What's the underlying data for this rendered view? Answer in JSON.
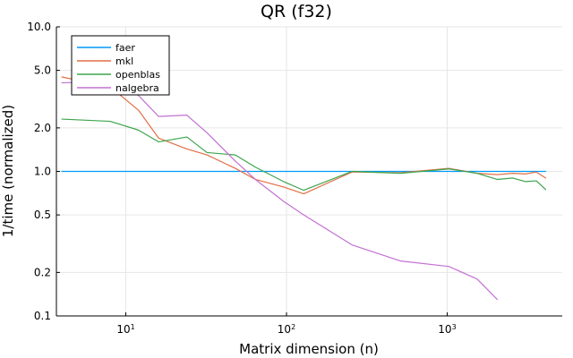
{
  "chart_data": {
    "type": "line",
    "title": "QR (f32)",
    "xlabel": "Matrix dimension (n)",
    "ylabel": "1/time (normalized)",
    "xscale": "log",
    "yscale": "log",
    "xlim": [
      3.7,
      5200
    ],
    "ylim": [
      0.1,
      10.0
    ],
    "grid": true,
    "legend_position": "top-left",
    "x_ticks": [
      {
        "value": 10,
        "label_base": "10",
        "label_exp": "1"
      },
      {
        "value": 100,
        "label_base": "10",
        "label_exp": "2"
      },
      {
        "value": 1000,
        "label_base": "10",
        "label_exp": "3"
      }
    ],
    "y_ticks": [
      {
        "value": 0.1,
        "label": "0.1"
      },
      {
        "value": 0.2,
        "label": "0.2"
      },
      {
        "value": 0.5,
        "label": "0.5"
      },
      {
        "value": 1.0,
        "label": "1.0"
      },
      {
        "value": 2.0,
        "label": "2.0"
      },
      {
        "value": 5.0,
        "label": "5.0"
      },
      {
        "value": 10.0,
        "label": "10.0"
      }
    ],
    "series": [
      {
        "name": "faer",
        "color": "#009af9",
        "points": [
          [
            4,
            1.0
          ],
          [
            8,
            1.0
          ],
          [
            12,
            1.0
          ],
          [
            16,
            1.0
          ],
          [
            24,
            1.0
          ],
          [
            32,
            1.0
          ],
          [
            48,
            1.0
          ],
          [
            64,
            1.0
          ],
          [
            96,
            1.0
          ],
          [
            128,
            1.0
          ],
          [
            256,
            1.0
          ],
          [
            512,
            1.0
          ],
          [
            1024,
            1.0
          ],
          [
            1536,
            1.0
          ],
          [
            2048,
            1.0
          ],
          [
            2560,
            1.0
          ],
          [
            3072,
            1.0
          ],
          [
            3584,
            1.0
          ],
          [
            4096,
            1.0
          ]
        ]
      },
      {
        "name": "mkl",
        "color": "#e26f46",
        "points": [
          [
            4,
            4.5
          ],
          [
            8,
            3.85
          ],
          [
            12,
            2.65
          ],
          [
            16,
            1.7
          ],
          [
            24,
            1.43
          ],
          [
            32,
            1.3
          ],
          [
            48,
            1.05
          ],
          [
            64,
            0.88
          ],
          [
            96,
            0.78
          ],
          [
            128,
            0.7
          ],
          [
            256,
            0.99
          ],
          [
            512,
            0.98
          ],
          [
            1024,
            1.05
          ],
          [
            1536,
            0.97
          ],
          [
            2048,
            0.95
          ],
          [
            2560,
            0.97
          ],
          [
            3072,
            0.96
          ],
          [
            3584,
            0.99
          ],
          [
            4096,
            0.9
          ]
        ]
      },
      {
        "name": "openblas",
        "color": "#3da44d",
        "points": [
          [
            4,
            2.3
          ],
          [
            8,
            2.22
          ],
          [
            12,
            1.93
          ],
          [
            16,
            1.6
          ],
          [
            24,
            1.73
          ],
          [
            32,
            1.35
          ],
          [
            48,
            1.3
          ],
          [
            64,
            1.07
          ],
          [
            96,
            0.85
          ],
          [
            128,
            0.74
          ],
          [
            256,
            1.0
          ],
          [
            512,
            0.97
          ],
          [
            1024,
            1.04
          ],
          [
            1536,
            0.97
          ],
          [
            2048,
            0.88
          ],
          [
            2560,
            0.9
          ],
          [
            3072,
            0.85
          ],
          [
            3584,
            0.86
          ],
          [
            4096,
            0.75
          ]
        ]
      },
      {
        "name": "nalgebra",
        "color": "#c271d2",
        "points": [
          [
            4,
            4.1
          ],
          [
            8,
            4.2
          ],
          [
            12,
            3.35
          ],
          [
            16,
            2.4
          ],
          [
            24,
            2.45
          ],
          [
            32,
            1.85
          ],
          [
            48,
            1.18
          ],
          [
            64,
            0.88
          ],
          [
            96,
            0.62
          ],
          [
            128,
            0.5
          ],
          [
            256,
            0.31
          ],
          [
            512,
            0.24
          ],
          [
            1024,
            0.22
          ],
          [
            1536,
            0.18
          ],
          [
            2048,
            0.13
          ]
        ]
      }
    ]
  }
}
